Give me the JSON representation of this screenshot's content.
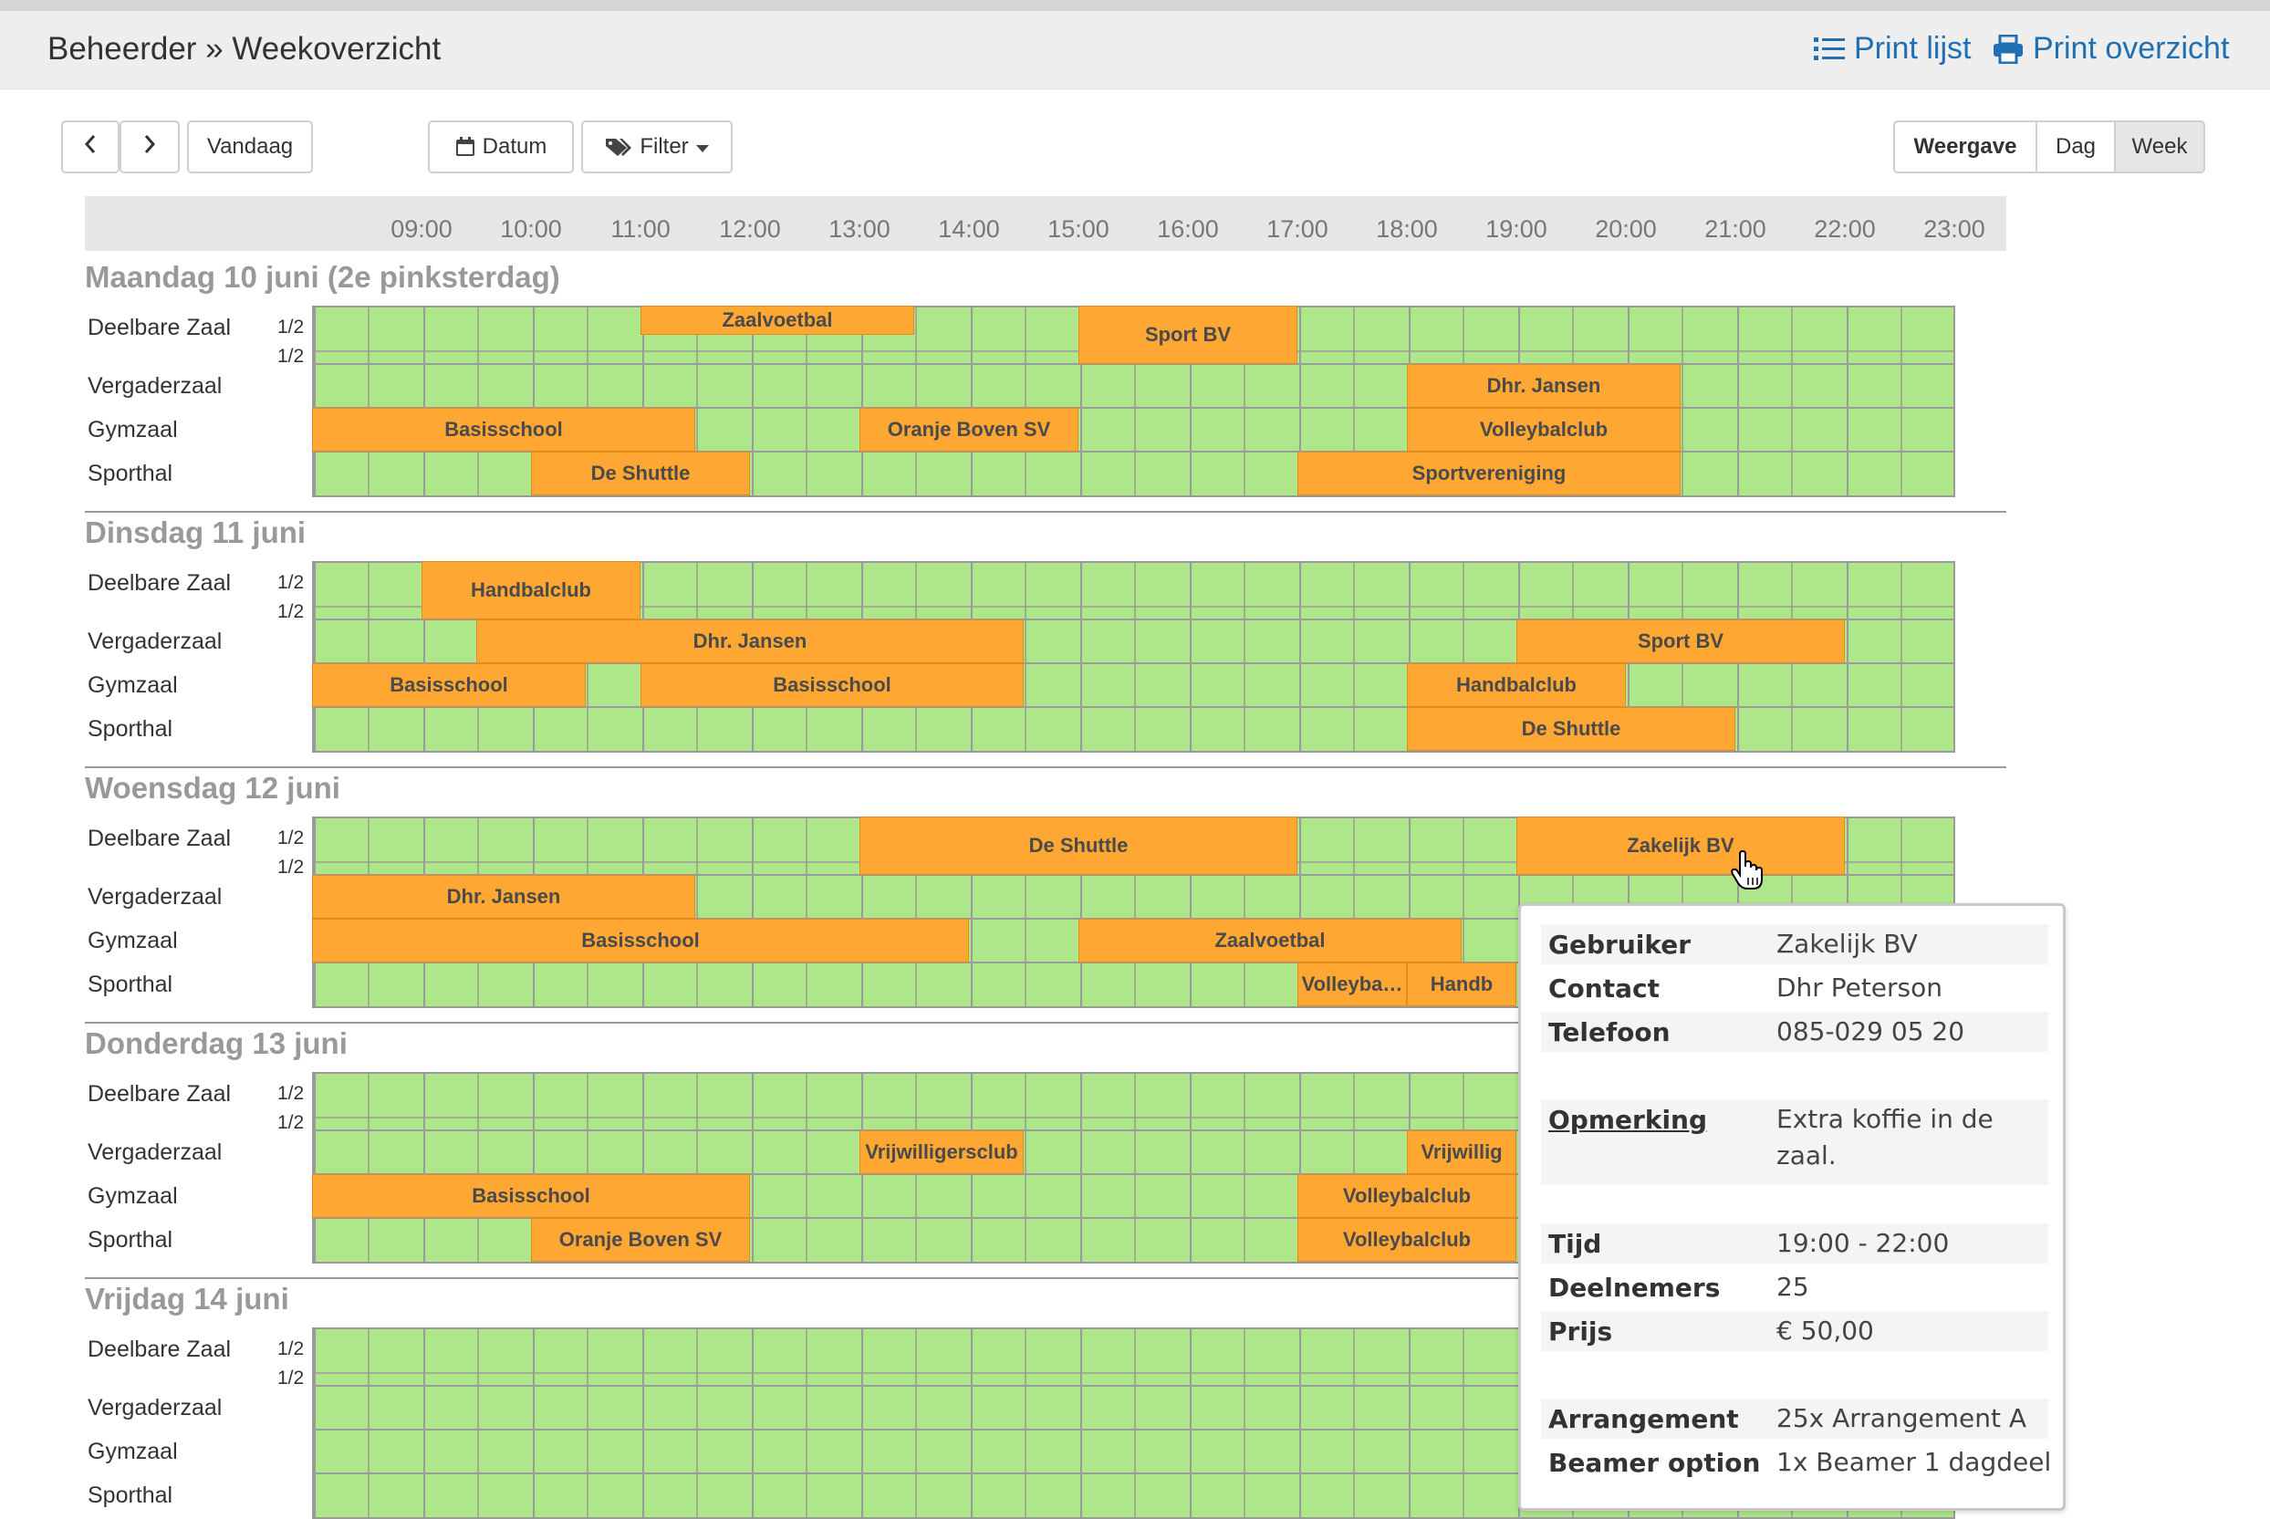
{
  "header": {
    "breadcrumb": "Beheerder » Weekoverzicht",
    "print_list": "Print lijst",
    "print_overview": "Print overzicht"
  },
  "toolbar": {
    "prev_icon": "chevron-left-icon",
    "next_icon": "chevron-right-icon",
    "today": "Vandaag",
    "date": "Datum",
    "filter": "Filter",
    "view_label": "Weergave",
    "view_day": "Dag",
    "view_week": "Week",
    "active_view": "Week"
  },
  "timeline": [
    "09:00",
    "10:00",
    "11:00",
    "12:00",
    "13:00",
    "14:00",
    "15:00",
    "16:00",
    "17:00",
    "18:00",
    "19:00",
    "20:00",
    "21:00",
    "22:00",
    "23:00"
  ],
  "rooms": {
    "shared": "Deelbare Zaal",
    "meeting": "Vergaderzaal",
    "gym": "Gymzaal",
    "hall": "Sporthal",
    "half": "1/2"
  },
  "days": [
    {
      "title": "Maandag 10 juni (2e pinksterdag)",
      "bookings": [
        {
          "row": "half1",
          "start": "11:00",
          "end": "13:30",
          "label": "Zaalvoetbal"
        },
        {
          "row": "shared",
          "start": "15:00",
          "end": "17:00",
          "label": "Sport BV"
        },
        {
          "row": "meeting",
          "start": "18:00",
          "end": "20:30",
          "label": "Dhr. Jansen"
        },
        {
          "row": "gym",
          "start": "08:00",
          "end": "11:30",
          "label": "Basisschool"
        },
        {
          "row": "gym",
          "start": "13:00",
          "end": "15:00",
          "label": "Oranje Boven SV"
        },
        {
          "row": "gym",
          "start": "18:00",
          "end": "20:30",
          "label": "Volleybalclub"
        },
        {
          "row": "hall",
          "start": "10:00",
          "end": "12:00",
          "label": "De Shuttle"
        },
        {
          "row": "hall",
          "start": "17:00",
          "end": "20:30",
          "label": "Sportvereniging"
        }
      ]
    },
    {
      "title": "Dinsdag 11 juni",
      "bookings": [
        {
          "row": "shared",
          "start": "09:00",
          "end": "11:00",
          "label": "Handbalclub"
        },
        {
          "row": "meeting",
          "start": "09:30",
          "end": "14:30",
          "label": "Dhr. Jansen"
        },
        {
          "row": "meeting",
          "start": "19:00",
          "end": "22:00",
          "label": "Sport BV"
        },
        {
          "row": "gym",
          "start": "08:00",
          "end": "10:30",
          "label": "Basisschool"
        },
        {
          "row": "gym",
          "start": "11:00",
          "end": "14:30",
          "label": "Basisschool"
        },
        {
          "row": "gym",
          "start": "18:00",
          "end": "20:00",
          "label": "Handbalclub"
        },
        {
          "row": "hall",
          "start": "18:00",
          "end": "21:00",
          "label": "De Shuttle"
        }
      ]
    },
    {
      "title": "Woensdag 12 juni",
      "bookings": [
        {
          "row": "shared",
          "start": "13:00",
          "end": "17:00",
          "label": "De Shuttle"
        },
        {
          "row": "shared",
          "start": "19:00",
          "end": "22:00",
          "label": "Zakelijk BV"
        },
        {
          "row": "meeting",
          "start": "08:00",
          "end": "11:30",
          "label": "Dhr. Jansen"
        },
        {
          "row": "gym",
          "start": "08:00",
          "end": "14:00",
          "label": "Basisschool"
        },
        {
          "row": "gym",
          "start": "15:00",
          "end": "18:30",
          "label": "Zaalvoetbal"
        },
        {
          "row": "hall",
          "start": "17:00",
          "end": "18:00",
          "label": "Volleyba…"
        },
        {
          "row": "hall",
          "start": "18:00",
          "end": "19:00",
          "label": "Handb"
        }
      ]
    },
    {
      "title": "Donderdag 13 juni",
      "bookings": [
        {
          "row": "meeting",
          "start": "13:00",
          "end": "14:30",
          "label": "Vrijwilligersclub"
        },
        {
          "row": "meeting",
          "start": "18:00",
          "end": "19:00",
          "label": "Vrijwillig"
        },
        {
          "row": "gym",
          "start": "08:00",
          "end": "12:00",
          "label": "Basisschool"
        },
        {
          "row": "gym",
          "start": "17:00",
          "end": "19:00",
          "label": "Volleybalclub"
        },
        {
          "row": "hall",
          "start": "10:00",
          "end": "12:00",
          "label": "Oranje Boven SV"
        },
        {
          "row": "hall",
          "start": "17:00",
          "end": "19:00",
          "label": "Volleybalclub"
        }
      ]
    },
    {
      "title": "Vrijdag 14 juni",
      "bookings": []
    }
  ],
  "popover": {
    "user_label": "Gebruiker",
    "user": "Zakelijk BV",
    "contact_label": "Contact",
    "contact": "Dhr Peterson",
    "phone_label": "Telefoon",
    "phone": "085-029 05 20",
    "note_label": "Opmerking",
    "note": "Extra koffie in de zaal.",
    "time_label": "Tijd",
    "time": "19:00 - 22:00",
    "participants_label": "Deelnemers",
    "participants": "25",
    "price_label": "Prijs",
    "price": "€ 50,00",
    "arrangement_label": "Arrangement",
    "arrangement": "25x Arrangement A",
    "beamer_label": "Beamer option",
    "beamer": "1x Beamer 1 dagdeel"
  },
  "colors": {
    "free": "#aee68a",
    "booked": "#ffa733",
    "link": "#1f6fb2"
  }
}
